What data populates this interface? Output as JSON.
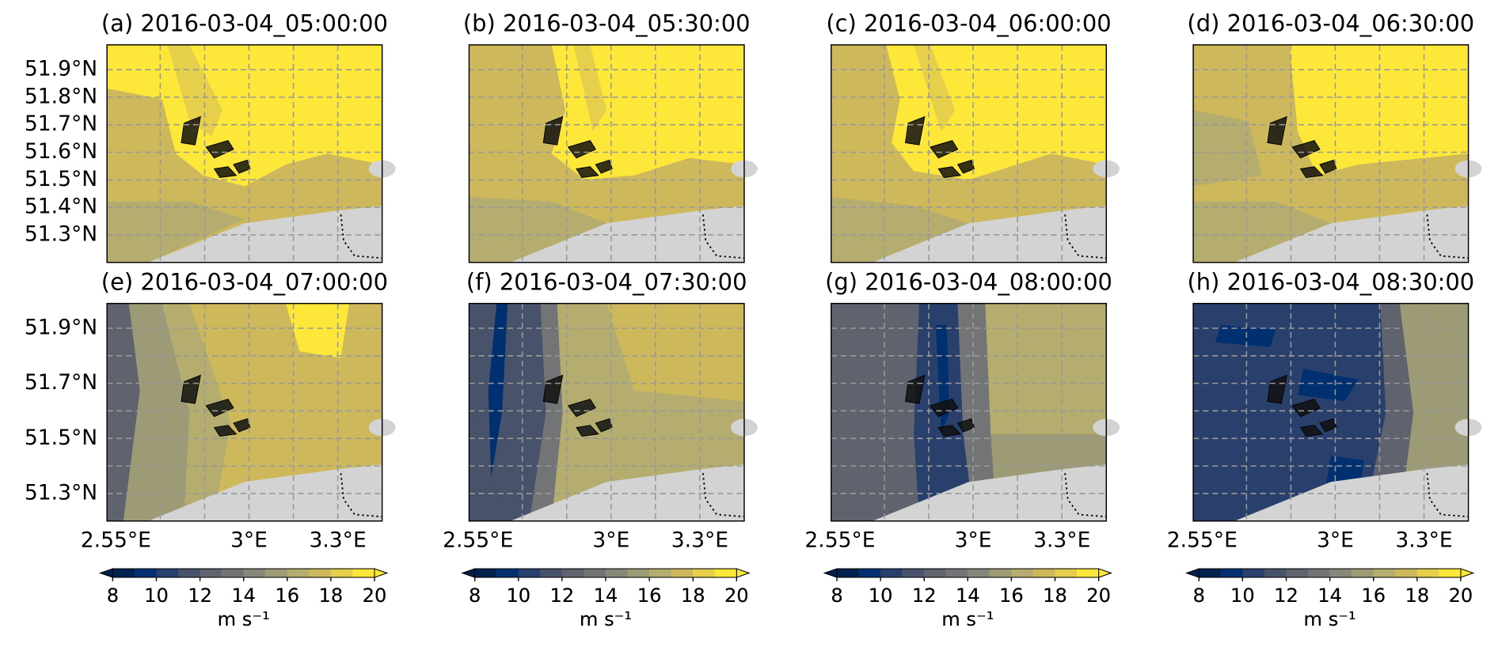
{
  "chart_data": [
    {
      "type": "contour",
      "title": "(a) 2016-03-04_05:00:00",
      "xlim": [
        2.52,
        3.45
      ],
      "ylim": [
        51.2,
        51.99
      ],
      "grid": true,
      "xgrid": [
        2.7,
        2.85,
        3.0,
        3.15,
        3.3
      ],
      "ygrid": [
        51.3,
        51.4,
        51.5,
        51.6,
        51.7,
        51.8,
        51.9
      ],
      "yticks": [
        {
          "value": 51.3,
          "label": "51.3°N"
        },
        {
          "value": 51.4,
          "label": "51.4°N"
        },
        {
          "value": 51.5,
          "label": "51.5°N"
        },
        {
          "value": 51.6,
          "label": "51.6°N"
        },
        {
          "value": 51.7,
          "label": "51.7°N"
        },
        {
          "value": 51.8,
          "label": "51.8°N"
        },
        {
          "value": 51.9,
          "label": "51.9°N"
        }
      ],
      "colorbar": {
        "levels": [
          8,
          9,
          10,
          11,
          12,
          13,
          14,
          15,
          16,
          17,
          18,
          19,
          20
        ],
        "ticks": [
          8,
          10,
          12,
          14,
          16,
          18,
          20
        ],
        "label": "m s⁻¹",
        "colors": [
          "#00204d",
          "#00306f",
          "#2a406c",
          "#48526b",
          "#5f636e",
          "#737475",
          "#878879",
          "#9d9a76",
          "#b4ad6f",
          "#cdb95c",
          "#e6cf4a",
          "#fde83a"
        ]
      }
    },
    {
      "type": "contour",
      "title": "(b) 2016-03-04_05:30:00",
      "xlim": [
        2.52,
        3.45
      ],
      "ylim": [
        51.2,
        51.99
      ],
      "grid": true,
      "xgrid": [
        2.7,
        2.85,
        3.0,
        3.15,
        3.3
      ],
      "ygrid": [
        51.3,
        51.4,
        51.5,
        51.6,
        51.7,
        51.8,
        51.9
      ],
      "colorbar": {
        "levels": [
          8,
          9,
          10,
          11,
          12,
          13,
          14,
          15,
          16,
          17,
          18,
          19,
          20
        ],
        "ticks": [
          8,
          10,
          12,
          14,
          16,
          18,
          20
        ],
        "label": "m s⁻¹",
        "colors": [
          "#00204d",
          "#00306f",
          "#2a406c",
          "#48526b",
          "#5f636e",
          "#737475",
          "#878879",
          "#9d9a76",
          "#b4ad6f",
          "#cdb95c",
          "#e6cf4a",
          "#fde83a"
        ]
      }
    },
    {
      "type": "contour",
      "title": "(c) 2016-03-04_06:00:00",
      "xlim": [
        2.52,
        3.45
      ],
      "ylim": [
        51.2,
        51.99
      ],
      "grid": true,
      "xgrid": [
        2.7,
        2.85,
        3.0,
        3.15,
        3.3
      ],
      "ygrid": [
        51.3,
        51.4,
        51.5,
        51.6,
        51.7,
        51.8,
        51.9
      ],
      "colorbar": {
        "levels": [
          8,
          9,
          10,
          11,
          12,
          13,
          14,
          15,
          16,
          17,
          18,
          19,
          20
        ],
        "ticks": [
          8,
          10,
          12,
          14,
          16,
          18,
          20
        ],
        "label": "m s⁻¹",
        "colors": [
          "#00204d",
          "#00306f",
          "#2a406c",
          "#48526b",
          "#5f636e",
          "#737475",
          "#878879",
          "#9d9a76",
          "#b4ad6f",
          "#cdb95c",
          "#e6cf4a",
          "#fde83a"
        ]
      }
    },
    {
      "type": "contour",
      "title": "(d) 2016-03-04_06:30:00",
      "xlim": [
        2.52,
        3.45
      ],
      "ylim": [
        51.2,
        51.99
      ],
      "grid": true,
      "xgrid": [
        2.7,
        2.85,
        3.0,
        3.15,
        3.3
      ],
      "ygrid": [
        51.3,
        51.4,
        51.5,
        51.6,
        51.7,
        51.8,
        51.9
      ],
      "colorbar": {
        "levels": [
          8,
          9,
          10,
          11,
          12,
          13,
          14,
          15,
          16,
          17,
          18,
          19,
          20
        ],
        "ticks": [
          8,
          10,
          12,
          14,
          16,
          18,
          20
        ],
        "label": "m s⁻¹",
        "colors": [
          "#00204d",
          "#00306f",
          "#2a406c",
          "#48526b",
          "#5f636e",
          "#737475",
          "#878879",
          "#9d9a76",
          "#b4ad6f",
          "#cdb95c",
          "#e6cf4a",
          "#fde83a"
        ]
      }
    },
    {
      "type": "contour",
      "title": "(e) 2016-03-04_07:00:00",
      "xlim": [
        2.52,
        3.45
      ],
      "ylim": [
        51.2,
        51.99
      ],
      "grid": true,
      "xgrid": [
        2.7,
        2.85,
        3.0,
        3.15,
        3.3
      ],
      "ygrid": [
        51.3,
        51.4,
        51.5,
        51.6,
        51.7,
        51.8,
        51.9
      ],
      "yticks": [
        {
          "value": 51.3,
          "label": "51.3°N"
        },
        {
          "value": 51.5,
          "label": "51.5°N"
        },
        {
          "value": 51.7,
          "label": "51.7°N"
        },
        {
          "value": 51.9,
          "label": "51.9°N"
        }
      ],
      "xticks": [
        {
          "value": 2.55,
          "label": "2.55°E"
        },
        {
          "value": 3,
          "label": "3°E"
        },
        {
          "value": 3.3,
          "label": "3.3°E"
        }
      ],
      "colorbar": {
        "levels": [
          8,
          9,
          10,
          11,
          12,
          13,
          14,
          15,
          16,
          17,
          18,
          19,
          20
        ],
        "ticks": [
          8,
          10,
          12,
          14,
          16,
          18,
          20
        ],
        "label": "m s⁻¹",
        "colors": [
          "#00204d",
          "#00306f",
          "#2a406c",
          "#48526b",
          "#5f636e",
          "#737475",
          "#878879",
          "#9d9a76",
          "#b4ad6f",
          "#cdb95c",
          "#e6cf4a",
          "#fde83a"
        ]
      }
    },
    {
      "type": "contour",
      "title": "(f) 2016-03-04_07:30:00",
      "xlim": [
        2.52,
        3.45
      ],
      "ylim": [
        51.2,
        51.99
      ],
      "grid": true,
      "xgrid": [
        2.7,
        2.85,
        3.0,
        3.15,
        3.3
      ],
      "ygrid": [
        51.3,
        51.4,
        51.5,
        51.6,
        51.7,
        51.8,
        51.9
      ],
      "xticks": [
        {
          "value": 2.55,
          "label": "2.55°E"
        },
        {
          "value": 3,
          "label": "3°E"
        },
        {
          "value": 3.3,
          "label": "3.3°E"
        }
      ],
      "colorbar": {
        "levels": [
          8,
          9,
          10,
          11,
          12,
          13,
          14,
          15,
          16,
          17,
          18,
          19,
          20
        ],
        "ticks": [
          8,
          10,
          12,
          14,
          16,
          18,
          20
        ],
        "label": "m s⁻¹",
        "colors": [
          "#00204d",
          "#00306f",
          "#2a406c",
          "#48526b",
          "#5f636e",
          "#737475",
          "#878879",
          "#9d9a76",
          "#b4ad6f",
          "#cdb95c",
          "#e6cf4a",
          "#fde83a"
        ]
      }
    },
    {
      "type": "contour",
      "title": "(g) 2016-03-04_08:00:00",
      "xlim": [
        2.52,
        3.45
      ],
      "ylim": [
        51.2,
        51.99
      ],
      "grid": true,
      "xgrid": [
        2.7,
        2.85,
        3.0,
        3.15,
        3.3
      ],
      "ygrid": [
        51.3,
        51.4,
        51.5,
        51.6,
        51.7,
        51.8,
        51.9
      ],
      "xticks": [
        {
          "value": 2.55,
          "label": "2.55°E"
        },
        {
          "value": 3,
          "label": "3°E"
        },
        {
          "value": 3.3,
          "label": "3.3°E"
        }
      ],
      "colorbar": {
        "levels": [
          8,
          9,
          10,
          11,
          12,
          13,
          14,
          15,
          16,
          17,
          18,
          19,
          20
        ],
        "ticks": [
          8,
          10,
          12,
          14,
          16,
          18,
          20
        ],
        "label": "m s⁻¹",
        "colors": [
          "#00204d",
          "#00306f",
          "#2a406c",
          "#48526b",
          "#5f636e",
          "#737475",
          "#878879",
          "#9d9a76",
          "#b4ad6f",
          "#cdb95c",
          "#e6cf4a",
          "#fde83a"
        ]
      }
    },
    {
      "type": "contour",
      "title": "(h) 2016-03-04_08:30:00",
      "xlim": [
        2.52,
        3.45
      ],
      "ylim": [
        51.2,
        51.99
      ],
      "grid": true,
      "xgrid": [
        2.7,
        2.85,
        3.0,
        3.15,
        3.3
      ],
      "ygrid": [
        51.3,
        51.4,
        51.5,
        51.6,
        51.7,
        51.8,
        51.9
      ],
      "xticks": [
        {
          "value": 2.55,
          "label": "2.55°E"
        },
        {
          "value": 3,
          "label": "3°E"
        },
        {
          "value": 3.3,
          "label": "3.3°E"
        }
      ],
      "colorbar": {
        "levels": [
          8,
          9,
          10,
          11,
          12,
          13,
          14,
          15,
          16,
          17,
          18,
          19,
          20
        ],
        "ticks": [
          8,
          10,
          12,
          14,
          16,
          18,
          20
        ],
        "label": "m s⁻¹",
        "colors": [
          "#00204d",
          "#00306f",
          "#2a406c",
          "#48526b",
          "#5f636e",
          "#737475",
          "#878879",
          "#9d9a76",
          "#b4ad6f",
          "#cdb95c",
          "#e6cf4a",
          "#fde83a"
        ]
      }
    }
  ]
}
